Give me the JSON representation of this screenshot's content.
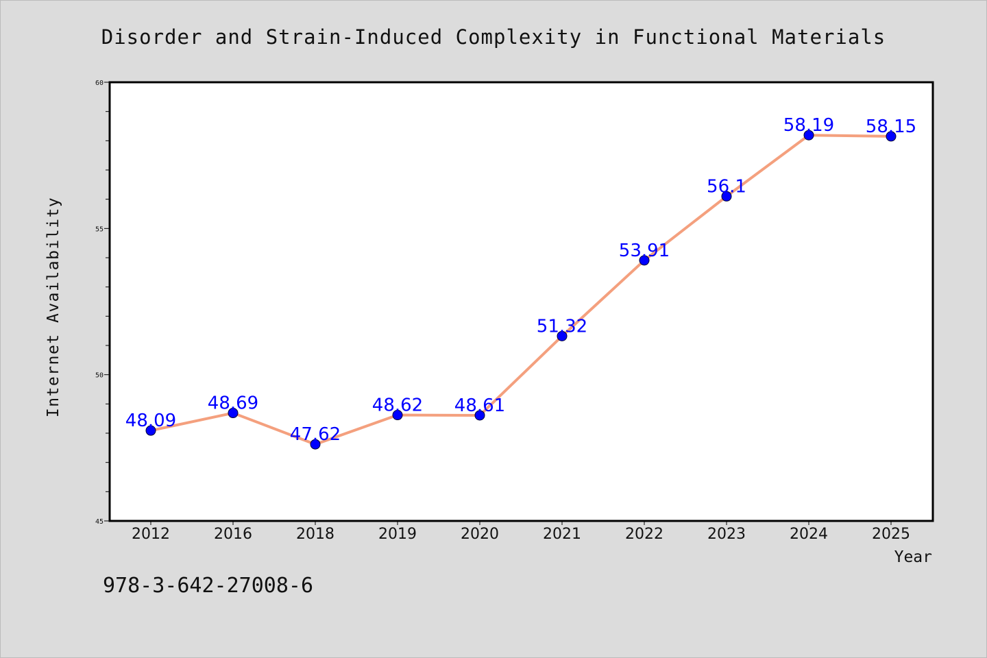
{
  "chart_data": {
    "type": "line",
    "title": "Disorder and Strain-Induced Complexity in Functional Materials",
    "xlabel": "Year",
    "ylabel": "Internet Availability",
    "categories": [
      "2012",
      "2016",
      "2018",
      "2019",
      "2020",
      "2021",
      "2022",
      "2023",
      "2024",
      "2025"
    ],
    "series": [
      {
        "values": [
          48.09,
          48.69,
          47.62,
          48.62,
          48.61,
          51.32,
          53.91,
          56.1,
          58.19,
          58.15
        ],
        "data_labels": [
          "48.09",
          "48.69",
          "47.62",
          "48.62",
          "48.61",
          "51.32",
          "53.91",
          "56.1",
          "58.19",
          "58.15"
        ]
      }
    ],
    "ylim": [
      45,
      60
    ],
    "yticks": [
      "45",
      "50",
      "55",
      "60"
    ],
    "grid": false,
    "annotation": "978-3-642-27008-6",
    "colors": {
      "background": "#dcdcdc",
      "plot_area": "#ffffff",
      "line": "#f4a07e",
      "marker": "#0000ff",
      "data_label": "#0000ff",
      "text": "#111111"
    }
  }
}
